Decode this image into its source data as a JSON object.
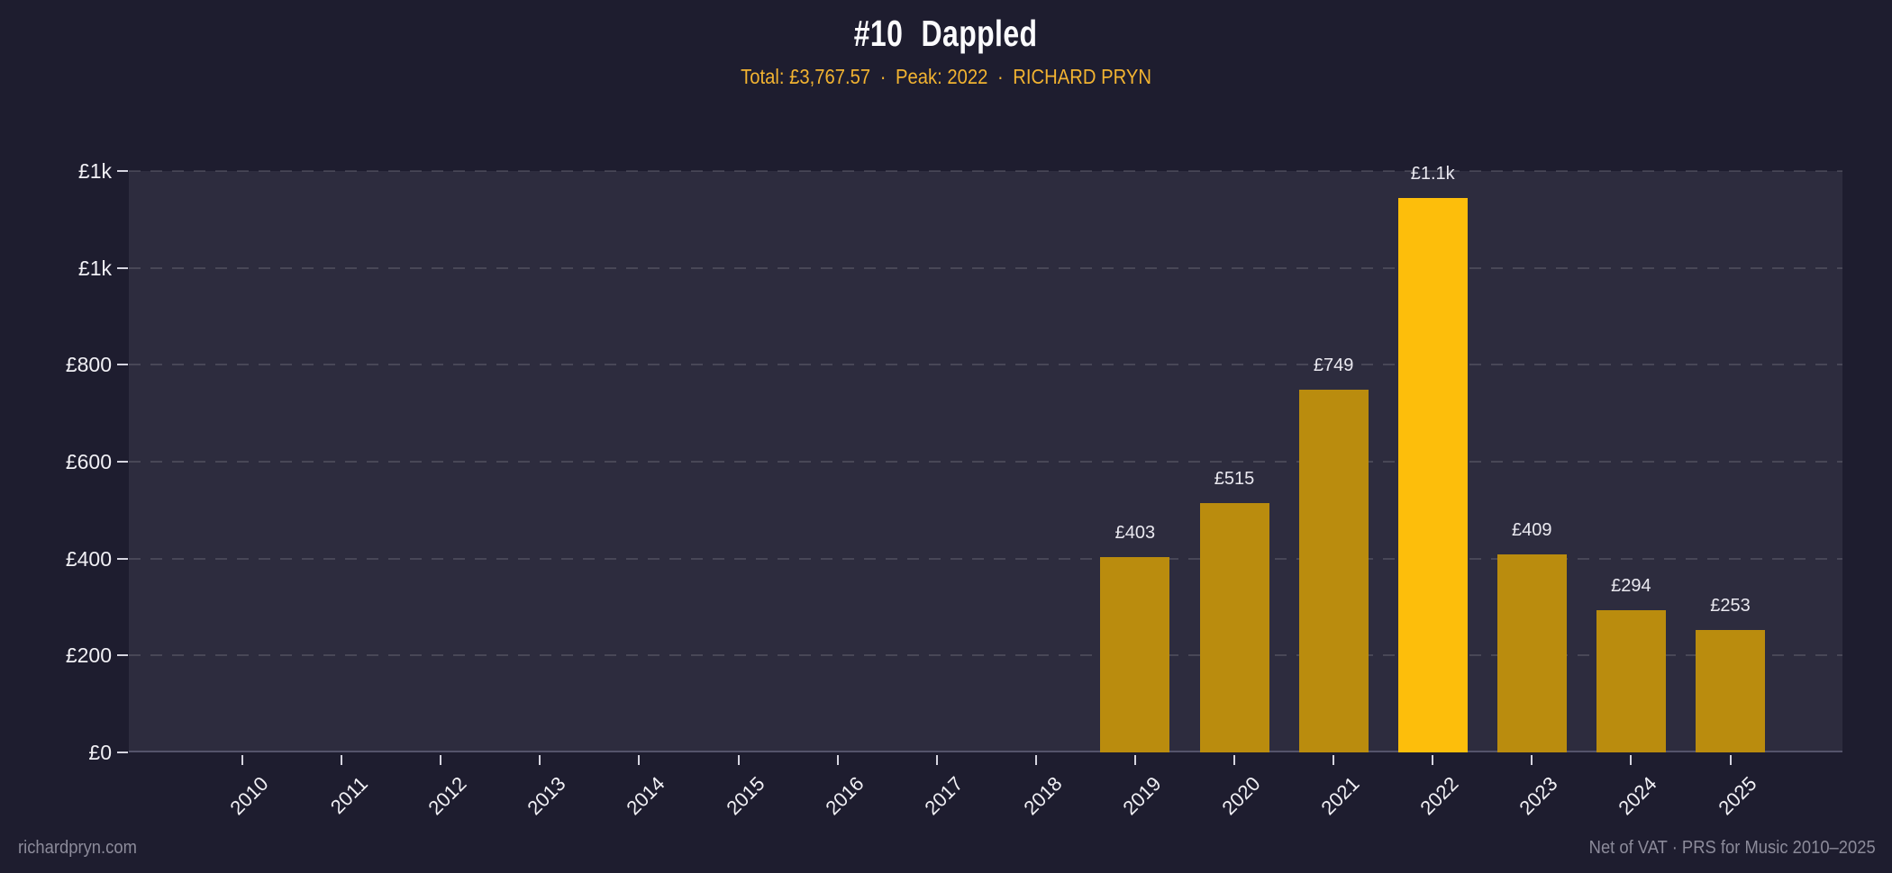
{
  "header": {
    "rank": "#10",
    "name": "Dappled"
  },
  "subtitle": {
    "total": "Total: £3,767.57",
    "separator": "·",
    "peak": "Peak: 2022",
    "artist": "RICHARD PRYN"
  },
  "footer": {
    "site": "richardpryn.com",
    "note": "Net of VAT · PRS for Music 2010–2025"
  },
  "colors": {
    "background": "#1e1d2f",
    "plot_background": "#2d2c3e",
    "bar": "#ba8c0e",
    "bar_highlight": "#fdbe0b",
    "accent_gold": "#f2b331",
    "axis_text": "#f1f0f5",
    "muted_text": "#8c8b9a"
  },
  "chart_data": {
    "type": "bar",
    "title": "#10 Dappled",
    "categories": [
      "2010",
      "2011",
      "2012",
      "2013",
      "2014",
      "2015",
      "2016",
      "2017",
      "2018",
      "2019",
      "2020",
      "2021",
      "2022",
      "2023",
      "2024",
      "2025"
    ],
    "values": [
      0,
      0,
      0,
      0,
      0,
      0,
      0,
      0,
      0,
      403,
      515,
      749,
      1144.57,
      409,
      294,
      253
    ],
    "bar_labels": [
      "",
      "",
      "",
      "",
      "",
      "",
      "",
      "",
      "",
      "£403",
      "£515",
      "£749",
      "£1.1k",
      "£409",
      "£294",
      "£253"
    ],
    "highlight_category": "2022",
    "total": 3767.57,
    "peak_year": "2022",
    "xlabel": "",
    "ylabel": "",
    "ylim": [
      0,
      1200
    ],
    "yticks": [
      0,
      200,
      400,
      600,
      800,
      1000,
      1200
    ],
    "ytick_labels": [
      "£0",
      "£200",
      "£400",
      "£600",
      "£800",
      "£1k",
      "£1k"
    ],
    "grid": "horizontal-dashed",
    "legend": "none"
  }
}
